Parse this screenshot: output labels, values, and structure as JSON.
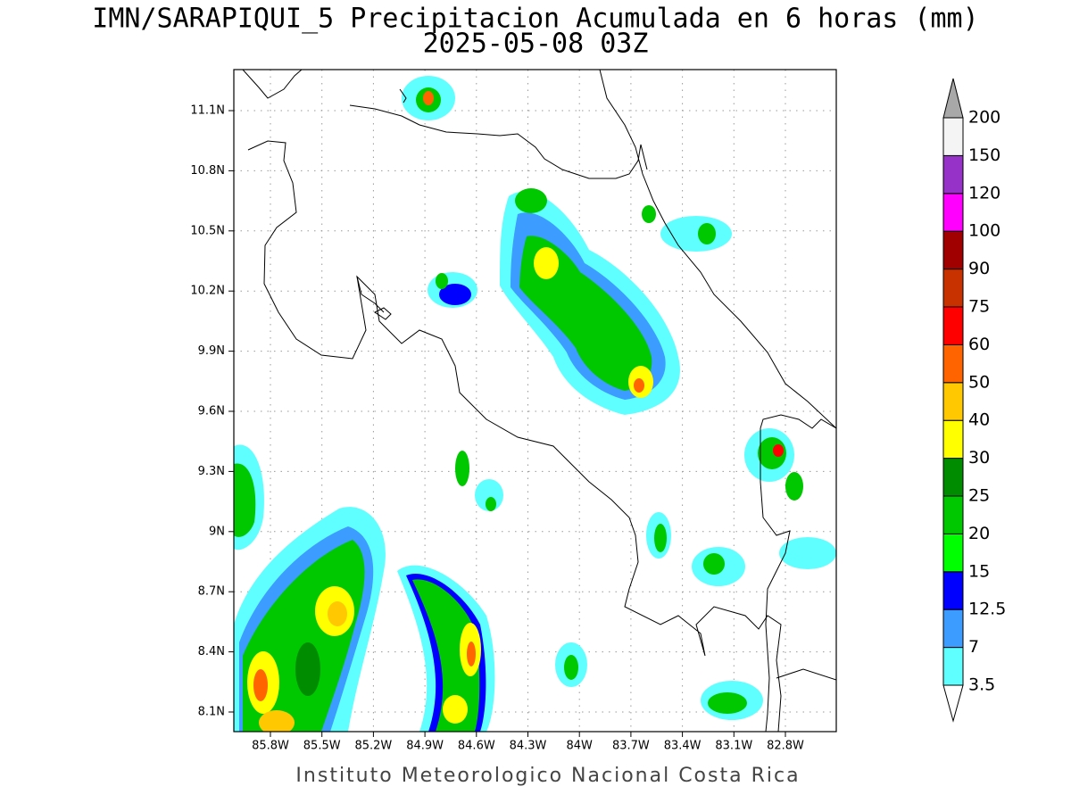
{
  "title": "IMN/SARAPIQUI_5 Precipitacion Acumulada en 6 horas (mm)",
  "subtitle": "2025-05-08 03Z",
  "footer": "Instituto Meteorologico Nacional Costa Rica",
  "map": {
    "lat_ticks": [
      "11.1N",
      "10.8N",
      "10.5N",
      "10.2N",
      "9.9N",
      "9.6N",
      "9.3N",
      "9N",
      "8.7N",
      "8.4N",
      "8.1N"
    ],
    "lon_ticks": [
      "85.8W",
      "85.5W",
      "85.2W",
      "84.9W",
      "84.6W",
      "84.3W",
      "84W",
      "83.7W",
      "83.4W",
      "83.1W",
      "82.8W"
    ]
  },
  "colorbar": {
    "levels": [
      3.5,
      7,
      12.5,
      15,
      20,
      25,
      30,
      40,
      50,
      60,
      75,
      90,
      100,
      120,
      150,
      200
    ],
    "colors": [
      "#60ffff",
      "#3c9cff",
      "#0000ff",
      "#00ff00",
      "#00c800",
      "#008c00",
      "#ffff00",
      "#ffc800",
      "#ff6400",
      "#ff0000",
      "#c83200",
      "#a00000",
      "#ff00ff",
      "#9632c8",
      "#f4f4f4"
    ],
    "over_color": "#a8a8a8",
    "under_color": "#ffffff"
  }
}
